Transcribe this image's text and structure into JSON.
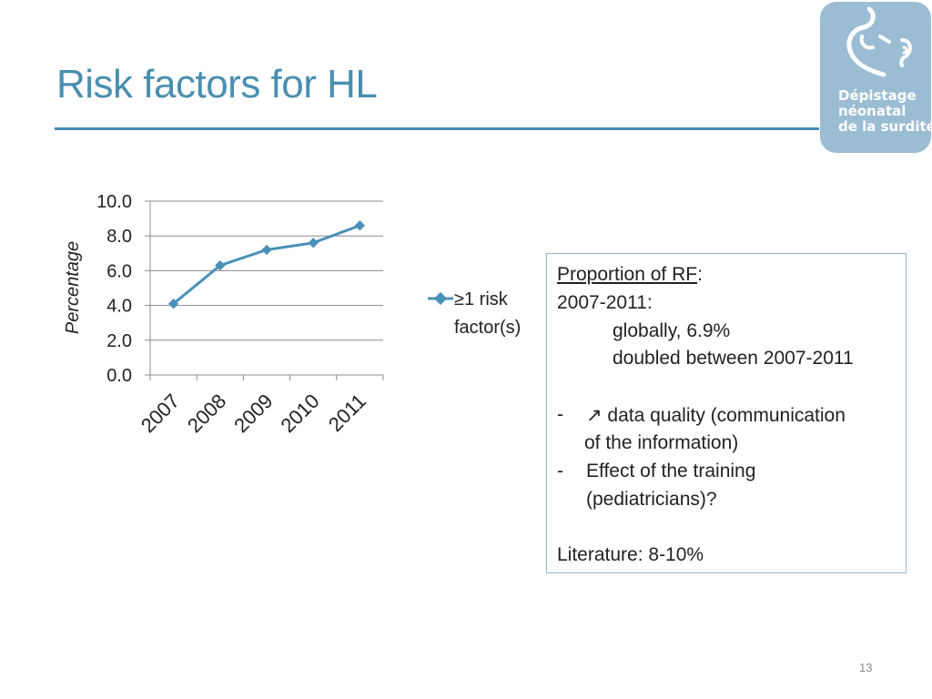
{
  "slide": {
    "title": "Risk factors for HL",
    "page_number": "13"
  },
  "logo": {
    "lines": [
      "Dépistage",
      "néonatal",
      "de la surdité"
    ],
    "color": "#9bbdd3"
  },
  "chart_data": {
    "type": "line",
    "x": [
      "2007",
      "2008",
      "2009",
      "2010",
      "2011"
    ],
    "series": [
      {
        "name": "≥1 risk factor(s)",
        "legend_lines": [
          "≥1 risk",
          "factor(s)"
        ],
        "values": [
          4.1,
          6.3,
          7.2,
          7.6,
          8.6
        ],
        "color": "#4a90b8"
      }
    ],
    "ylabel": "Percentage",
    "xlabel": "",
    "ylim": [
      0,
      10
    ],
    "yticks": [
      "0.0",
      "2.0",
      "4.0",
      "6.0",
      "8.0",
      "10.0"
    ],
    "grid": true,
    "legend_position": "right"
  },
  "info_box": {
    "heading": "Proportion of RF",
    "heading_suffix": ":",
    "period": "2007-2011:",
    "globally": "globally, 6.9%",
    "doubled": "doubled between 2007-2011",
    "bullet_dash": "-",
    "bullet1_line1": "↗ data quality (communication",
    "bullet1_line2": "of the information)",
    "bullet2_line1": "Effect of the training",
    "bullet2_line2": "(pediatricians)?",
    "literature": "Literature: 8-10%"
  }
}
